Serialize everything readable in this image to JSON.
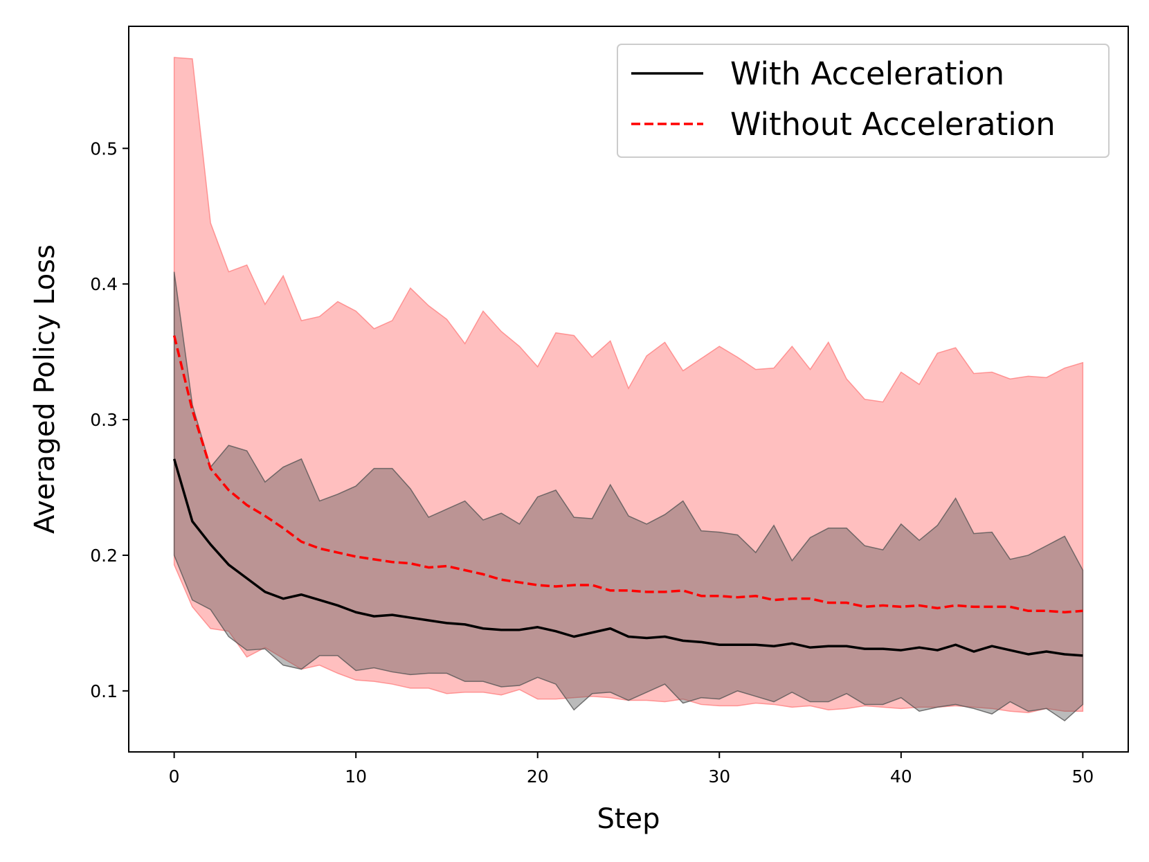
{
  "chart_data": {
    "type": "line",
    "title": "",
    "xlabel": "Step",
    "ylabel": "Averaged Policy Loss",
    "xlim": [
      -2.5,
      52.5
    ],
    "ylim": [
      0.055,
      0.59
    ],
    "xticks": [
      0,
      10,
      20,
      30,
      40,
      50
    ],
    "yticks": [
      0.1,
      0.2,
      0.3,
      0.4,
      0.5
    ],
    "xtick_labels": [
      "0",
      "10",
      "20",
      "30",
      "40",
      "50"
    ],
    "ytick_labels": [
      "0.1",
      "0.2",
      "0.3",
      "0.4",
      "0.5"
    ],
    "grid": false,
    "legend_position": "top-right",
    "x": [
      0,
      1,
      2,
      3,
      4,
      5,
      6,
      7,
      8,
      9,
      10,
      11,
      12,
      13,
      14,
      15,
      16,
      17,
      18,
      19,
      20,
      21,
      22,
      23,
      24,
      25,
      26,
      27,
      28,
      29,
      30,
      31,
      32,
      33,
      34,
      35,
      36,
      37,
      38,
      39,
      40,
      41,
      42,
      43,
      44,
      45,
      46,
      47,
      48,
      49,
      50
    ],
    "series": [
      {
        "name": "With Acceleration",
        "color": "#000000",
        "band_color": "#555555",
        "linestyle": "solid",
        "mean": [
          0.271,
          0.225,
          0.208,
          0.193,
          0.183,
          0.173,
          0.168,
          0.171,
          0.167,
          0.163,
          0.158,
          0.155,
          0.156,
          0.154,
          0.152,
          0.15,
          0.149,
          0.146,
          0.145,
          0.145,
          0.147,
          0.144,
          0.14,
          0.143,
          0.146,
          0.14,
          0.139,
          0.14,
          0.137,
          0.136,
          0.134,
          0.134,
          0.134,
          0.133,
          0.135,
          0.132,
          0.133,
          0.133,
          0.131,
          0.131,
          0.13,
          0.132,
          0.13,
          0.134,
          0.129,
          0.133,
          0.13,
          0.127,
          0.129,
          0.127,
          0.126
        ],
        "upper": [
          0.409,
          0.311,
          0.265,
          0.281,
          0.277,
          0.254,
          0.265,
          0.271,
          0.24,
          0.245,
          0.251,
          0.264,
          0.264,
          0.249,
          0.228,
          0.234,
          0.24,
          0.226,
          0.231,
          0.223,
          0.243,
          0.248,
          0.228,
          0.227,
          0.252,
          0.229,
          0.223,
          0.23,
          0.24,
          0.218,
          0.217,
          0.215,
          0.202,
          0.222,
          0.196,
          0.213,
          0.22,
          0.22,
          0.207,
          0.204,
          0.223,
          0.211,
          0.222,
          0.242,
          0.216,
          0.217,
          0.197,
          0.2,
          0.207,
          0.214,
          0.189
        ],
        "lower": [
          0.2,
          0.167,
          0.16,
          0.14,
          0.13,
          0.131,
          0.119,
          0.116,
          0.126,
          0.126,
          0.115,
          0.117,
          0.114,
          0.112,
          0.113,
          0.113,
          0.107,
          0.107,
          0.103,
          0.104,
          0.11,
          0.105,
          0.086,
          0.098,
          0.099,
          0.093,
          0.099,
          0.105,
          0.091,
          0.095,
          0.094,
          0.1,
          0.096,
          0.092,
          0.099,
          0.092,
          0.092,
          0.098,
          0.09,
          0.09,
          0.095,
          0.085,
          0.088,
          0.09,
          0.087,
          0.083,
          0.092,
          0.085,
          0.087,
          0.078,
          0.09
        ]
      },
      {
        "name": "Without Acceleration",
        "color": "#ff0000",
        "band_color": "#ff8080",
        "linestyle": "dashed",
        "mean": [
          0.362,
          0.307,
          0.264,
          0.248,
          0.237,
          0.229,
          0.22,
          0.21,
          0.205,
          0.202,
          0.199,
          0.197,
          0.195,
          0.194,
          0.191,
          0.192,
          0.189,
          0.186,
          0.182,
          0.18,
          0.178,
          0.177,
          0.178,
          0.178,
          0.174,
          0.174,
          0.173,
          0.173,
          0.174,
          0.17,
          0.17,
          0.169,
          0.17,
          0.167,
          0.168,
          0.168,
          0.165,
          0.165,
          0.162,
          0.163,
          0.162,
          0.163,
          0.161,
          0.163,
          0.162,
          0.162,
          0.162,
          0.159,
          0.159,
          0.158,
          0.159
        ],
        "upper": [
          0.567,
          0.566,
          0.445,
          0.409,
          0.414,
          0.385,
          0.406,
          0.373,
          0.376,
          0.387,
          0.38,
          0.367,
          0.373,
          0.397,
          0.384,
          0.374,
          0.356,
          0.38,
          0.365,
          0.354,
          0.339,
          0.364,
          0.362,
          0.346,
          0.358,
          0.323,
          0.347,
          0.357,
          0.336,
          0.345,
          0.354,
          0.346,
          0.337,
          0.338,
          0.354,
          0.337,
          0.357,
          0.33,
          0.315,
          0.313,
          0.335,
          0.326,
          0.349,
          0.353,
          0.334,
          0.335,
          0.33,
          0.332,
          0.331,
          0.338,
          0.342
        ],
        "lower": [
          0.193,
          0.162,
          0.146,
          0.144,
          0.125,
          0.132,
          0.124,
          0.116,
          0.119,
          0.113,
          0.108,
          0.107,
          0.105,
          0.102,
          0.102,
          0.098,
          0.099,
          0.099,
          0.097,
          0.101,
          0.094,
          0.094,
          0.095,
          0.096,
          0.095,
          0.093,
          0.093,
          0.092,
          0.094,
          0.09,
          0.089,
          0.089,
          0.091,
          0.09,
          0.088,
          0.089,
          0.086,
          0.087,
          0.089,
          0.088,
          0.087,
          0.088,
          0.088,
          0.089,
          0.088,
          0.087,
          0.085,
          0.084,
          0.087,
          0.085,
          0.085
        ]
      }
    ]
  }
}
